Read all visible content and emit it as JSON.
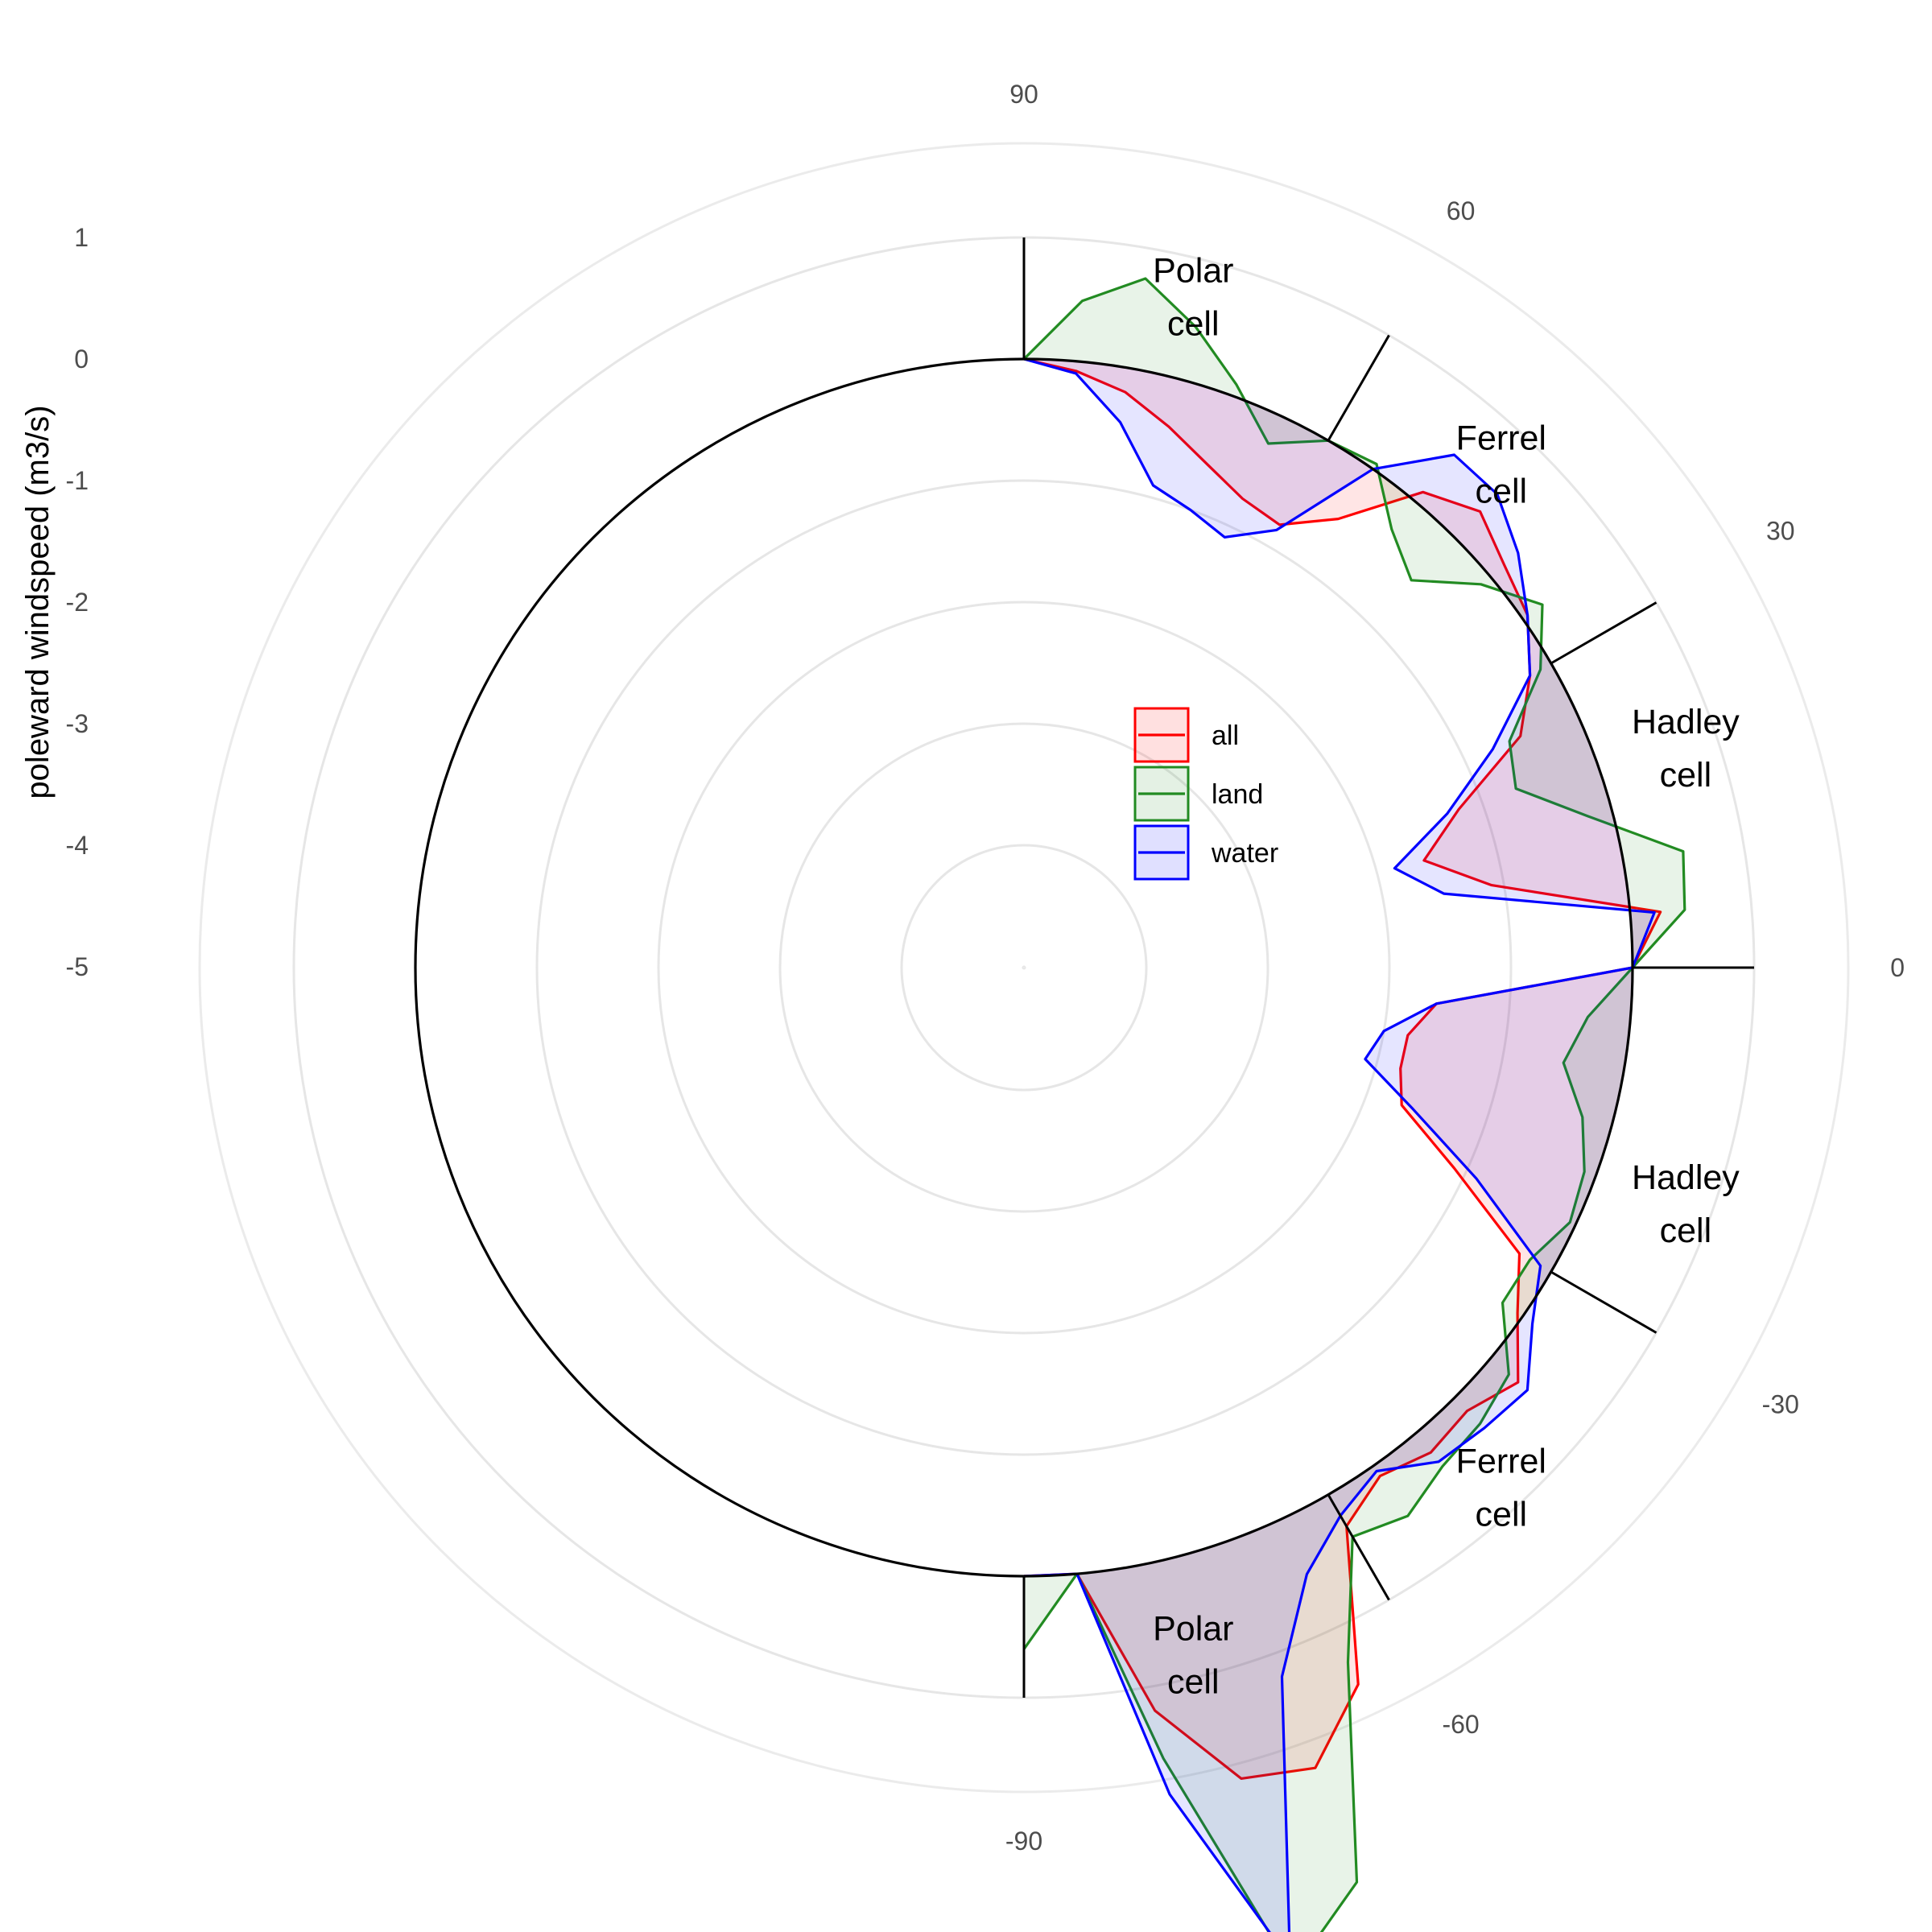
{
  "chart_data": {
    "type": "polar-area",
    "title": "",
    "xlabel": "",
    "ylabel": "poleward windspeed (m3/s)",
    "theta_axis": {
      "range": [
        -90,
        90
      ],
      "tick_labels": [
        "90",
        "60",
        "30",
        "0",
        "-30",
        "-60",
        "-90"
      ]
    },
    "r_axis": {
      "range": [
        -5,
        1
      ],
      "tick_labels": [
        "1",
        "0",
        "-1",
        "-2",
        "-3",
        "-4",
        "-5"
      ]
    },
    "grid": true,
    "legend": {
      "position": "center",
      "entries": [
        "all",
        "land",
        "water"
      ]
    },
    "colors": {
      "all": "#ff0000",
      "land": "#228b22",
      "water": "#0000ff"
    },
    "cell_boundaries": [
      90,
      60,
      30,
      0,
      -30,
      -60,
      -90
    ],
    "cell_labels": [
      {
        "line1": "Polar",
        "line2": "cell",
        "lat": 76
      },
      {
        "line1": "Ferrel",
        "line2": "cell",
        "lat": 47
      },
      {
        "line1": "Hadley",
        "line2": "cell",
        "lat": 19
      },
      {
        "line1": "Hadley",
        "line2": "cell",
        "lat": -19
      },
      {
        "line1": "Ferrel",
        "line2": "cell",
        "lat": -47
      },
      {
        "line1": "Polar",
        "line2": "cell",
        "lat": -76
      }
    ],
    "series": [
      {
        "name": "all",
        "lat": [
          90,
          85,
          80,
          75,
          70,
          65,
          60,
          55,
          50,
          45,
          40,
          35,
          30,
          25,
          20,
          15,
          10,
          5,
          0,
          -5,
          -10,
          -15,
          -20,
          -25,
          -30,
          -35,
          -40,
          -45,
          -50,
          -55,
          -60,
          -65,
          -70,
          -75,
          -80,
          -85,
          -90
        ],
        "values": [
          0,
          -0.08,
          -0.2,
          -0.4,
          -0.6,
          -0.75,
          -0.8,
          -0.5,
          0.1,
          0.3,
          0.15,
          0.05,
          -0.2,
          -0.5,
          -1.2,
          -1.6,
          -1.1,
          0.25,
          0,
          -1.6,
          -1.8,
          -1.8,
          -1.7,
          -1.1,
          -0.3,
          -0.05,
          0.3,
          0.15,
          0.2,
          0.1,
          0.3,
          1.5,
          2.0,
          1.9,
          1.2,
          0,
          0
        ]
      },
      {
        "name": "land",
        "lat": [
          90,
          85,
          80,
          75,
          70,
          65,
          60,
          55,
          50,
          45,
          40,
          35,
          30,
          25,
          20,
          15,
          10,
          5,
          0,
          -5,
          -10,
          -15,
          -20,
          -25,
          -30,
          -35,
          -40,
          -45,
          -50,
          -55,
          -60,
          -65,
          -70,
          -75,
          -80,
          -85,
          -90
        ],
        "values": [
          0,
          0.5,
          0.75,
          0.45,
          0.1,
          -0.25,
          0,
          0.05,
          -0.3,
          -0.5,
          -0.1,
          0.2,
          -0.1,
          -0.6,
          -0.7,
          -0.2,
          0.5,
          0.45,
          0,
          -0.35,
          -0.5,
          -0.25,
          -0.1,
          -0.05,
          -0.2,
          -0.2,
          0.2,
          0.3,
          0.35,
          0.5,
          0.4,
          1.3,
          3.0,
          3.55,
          1.6,
          0,
          0.6
        ]
      },
      {
        "name": "water",
        "lat": [
          90,
          85,
          80,
          75,
          70,
          65,
          60,
          55,
          50,
          45,
          40,
          35,
          30,
          25,
          20,
          15,
          10,
          5,
          0,
          -5,
          -10,
          -15,
          -20,
          -25,
          -30,
          -35,
          -40,
          -45,
          -50,
          -55,
          -60,
          -65,
          -70,
          -75,
          -80,
          -85,
          -90
        ],
        "values": [
          0,
          -0.1,
          -0.45,
          -0.9,
          -1.0,
          -1.1,
          -0.85,
          0.0,
          0.5,
          0.5,
          0.3,
          0.05,
          -0.2,
          -0.75,
          -1.3,
          -1.85,
          -1.5,
          0.2,
          0,
          -1.6,
          -2.0,
          -2.1,
          -1.6,
          -0.9,
          -0.1,
          0.1,
          0.4,
          0.35,
          0.3,
          0.05,
          0.2,
          0.5,
          1.2,
          3.45,
          1.9,
          0,
          0
        ]
      }
    ]
  }
}
